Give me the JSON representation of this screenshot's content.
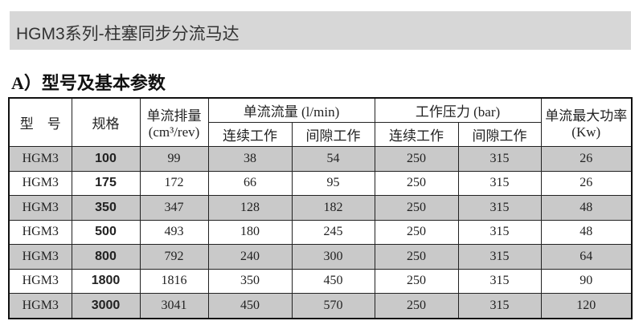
{
  "banner": {
    "title": "HGM3系列-柱塞同步分流马达"
  },
  "section": {
    "heading": "A）型号及基本参数"
  },
  "table": {
    "headers": {
      "model": "型　号",
      "spec": "规格",
      "displacement": "单流排量",
      "displacement_unit": "(cm³/rev)",
      "flow": "单流流量 (l/min)",
      "pressure": "工作压力 (bar)",
      "power": "单流最大功率(Kw)",
      "continuous": "连续工作",
      "intermittent": "间隙工作"
    },
    "rows": [
      [
        "HGM3",
        "100",
        "99",
        "38",
        "54",
        "250",
        "315",
        "26"
      ],
      [
        "HGM3",
        "175",
        "172",
        "66",
        "95",
        "250",
        "315",
        "26"
      ],
      [
        "HGM3",
        "350",
        "347",
        "128",
        "182",
        "250",
        "315",
        "48"
      ],
      [
        "HGM3",
        "500",
        "493",
        "180",
        "245",
        "250",
        "315",
        "48"
      ],
      [
        "HGM3",
        "800",
        "792",
        "240",
        "300",
        "250",
        "315",
        "64"
      ],
      [
        "HGM3",
        "1800",
        "1816",
        "350",
        "450",
        "250",
        "315",
        "90"
      ],
      [
        "HGM3",
        "3000",
        "3041",
        "450",
        "570",
        "250",
        "315",
        "120"
      ]
    ]
  }
}
